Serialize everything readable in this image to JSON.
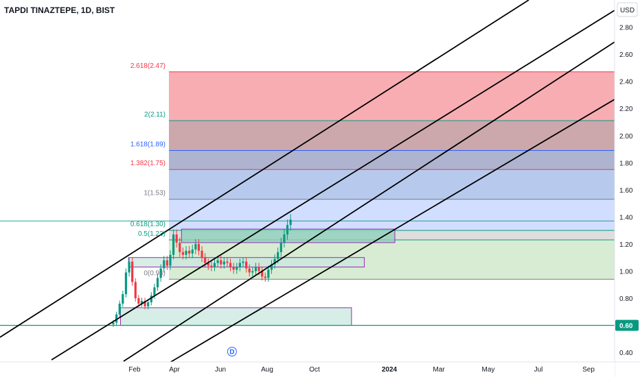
{
  "chart_data": {
    "type": "candlestick",
    "title": "TAPDI TINAZTEPE, 1D, BIST",
    "currency": "USD",
    "y_axis": {
      "range": [
        0.33,
        3.0
      ],
      "ticks": [
        "2.80",
        "2.60",
        "2.40",
        "2.20",
        "2.00",
        "1.80",
        "1.60",
        "1.40",
        "1.20",
        "1.00",
        "0.80",
        "0.60",
        "0.40"
      ],
      "last_price": "0.60",
      "last_price_color": "#089981"
    },
    "x_axis": {
      "ticks": [
        "Feb",
        "Apr",
        "Jun",
        "Aug",
        "Oct",
        "2024",
        "Mar",
        "May",
        "Jul",
        "Sep"
      ],
      "bold_tick": "2024"
    },
    "fib_levels": [
      {
        "label": "2.618(2.47)",
        "price": 2.47,
        "color": "#f23645",
        "fill": "#f7a9ae"
      },
      {
        "label": "2(2.11)",
        "price": 2.11,
        "color": "#089981",
        "fill": "#c9a3a8"
      },
      {
        "label": "1.618(1.89)",
        "price": 1.89,
        "color": "#2962ff",
        "fill": "#aab0cc"
      },
      {
        "label": "1.382(1.75)",
        "price": 1.75,
        "color": "#f23645",
        "fill": "#b3c6ec"
      },
      {
        "label": "1(1.53)",
        "price": 1.53,
        "color": "#787b86",
        "fill": "#cfdcff"
      },
      {
        "label": "0.618(1.30)",
        "price": 1.3,
        "color": "#089981",
        "fill": "#dcdcdc"
      },
      {
        "label": "0.5(1.23)",
        "price": 1.23,
        "color": "#089981",
        "fill": "#b7ddd3"
      },
      {
        "label": "0(0.94)",
        "price": 0.94,
        "color": "#787b86",
        "fill": "#d8ecd3"
      }
    ],
    "zones": [
      {
        "from": "2023-03-27",
        "to": "2023-12-18",
        "price_low": 1.21,
        "price_high": 1.31
      },
      {
        "from": "2023-01-20",
        "to": "2023-11-10",
        "price_low": 1.03,
        "price_high": 1.1
      },
      {
        "from": "2023-01-10",
        "to": "2023-10-25",
        "price_low": 0.6,
        "price_high": 0.73
      }
    ],
    "horizontal_lines": [
      {
        "price": 1.37,
        "color": "#089981"
      },
      {
        "price": 0.6,
        "color": "#089981"
      }
    ],
    "channel_lines": 4,
    "candles": {
      "from": "2023-01-01",
      "to": "2023-08-10",
      "close": [
        0.62,
        0.68,
        0.76,
        0.83,
        0.99,
        1.07,
        0.92,
        0.8,
        0.76,
        0.78,
        0.74,
        0.77,
        0.82,
        0.88,
        0.95,
        1.02,
        1.08,
        1.04,
        1.12,
        1.27,
        1.21,
        1.14,
        1.12,
        1.15,
        1.13,
        1.16,
        1.2,
        1.15,
        1.1,
        1.06,
        1.04,
        1.03,
        1.06,
        1.08,
        1.05,
        1.07,
        1.06,
        1.03,
        1.01,
        1.03,
        1.06,
        1.07,
        1.02,
        0.99,
        1.0,
        1.03,
        1.0,
        0.96,
        0.95,
        1.01,
        1.05,
        1.09,
        1.14,
        1.21,
        1.27,
        1.34,
        1.38
      ],
      "last_close": 1.38
    },
    "marker": {
      "label": "D",
      "date": "2023-05-29"
    }
  }
}
